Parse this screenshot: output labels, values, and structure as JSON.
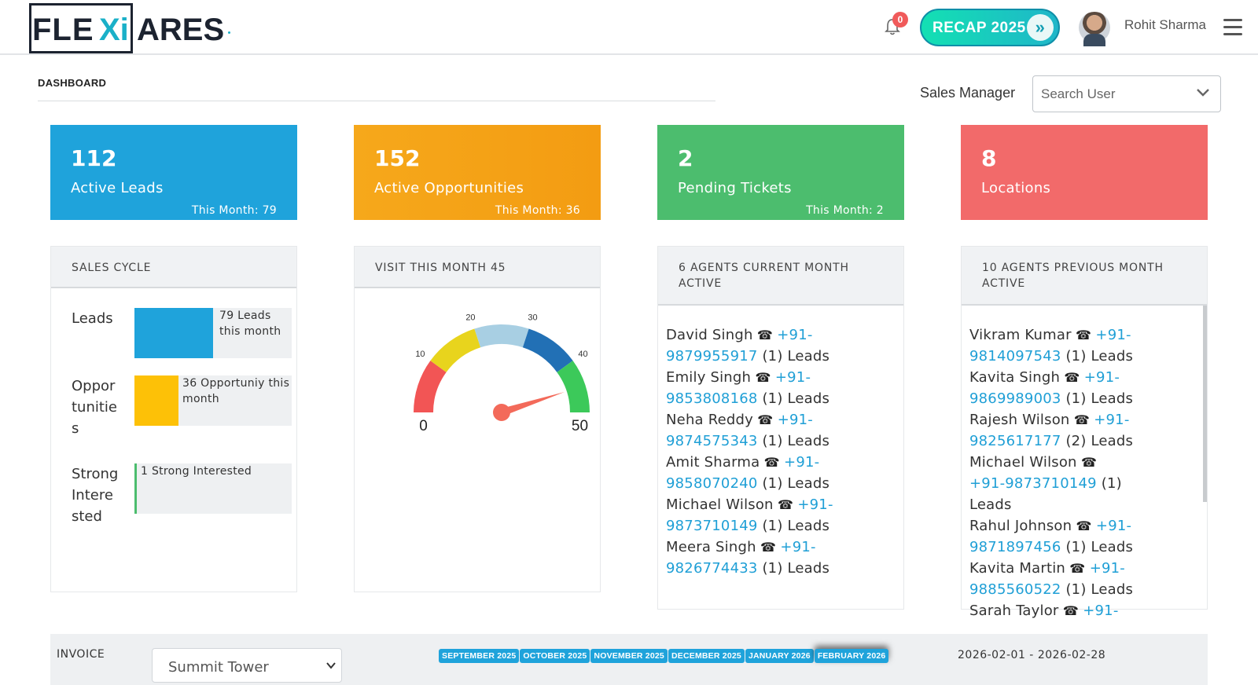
{
  "header": {
    "logo_text": "FLEXIARES",
    "notification_count": "0",
    "recap_label": "RECAP 2025",
    "user_name": "Rohit Sharma"
  },
  "page": {
    "title": "DASHBOARD",
    "filter_label": "Sales Manager",
    "search_placeholder": "Search User"
  },
  "stats": [
    {
      "value": "112",
      "label": "Active Leads",
      "sub": "This Month: 79",
      "color": "#1fa3db"
    },
    {
      "value": "152",
      "label": "Active Opportunities",
      "sub": "This Month: 36",
      "color": "#f39c12"
    },
    {
      "value": "2",
      "label": "Pending Tickets",
      "sub": "This Month: 2",
      "color": "#4cbd6e"
    },
    {
      "value": "8",
      "label": "Locations",
      "sub": "",
      "color": "#f26a6a"
    }
  ],
  "sales_cycle": {
    "title": "SALES CYCLE",
    "rows": [
      {
        "name": "Leads",
        "text": "79 Leads this month",
        "fill": 0.5,
        "color": "#1fa3db"
      },
      {
        "name": "Opportunities",
        "text": "36 Opportuniy this month",
        "fill": 0.28,
        "color": "#fdc107"
      },
      {
        "name": "Strong Interested",
        "text": "1 Strong Interested",
        "fill": 0.01,
        "color": "#4cbd6e"
      }
    ]
  },
  "visit": {
    "title": "VISIT THIS MONTH 45",
    "gauge": {
      "min": "0",
      "max": "50",
      "value": 45,
      "ticks": [
        "10",
        "20",
        "30",
        "40"
      ],
      "band_colors": [
        "#f25555",
        "#e8d41d",
        "#a8cfe3",
        "#2270b5",
        "#3cc95a"
      ],
      "needle_color": "#f36a5a"
    }
  },
  "current_agents": {
    "title": "6 AGENTS CURRENT MONTH ACTIVE",
    "items": [
      {
        "name": "David Singh",
        "phone": "+91-9879955917",
        "leads": "(1) Leads"
      },
      {
        "name": "Emily Singh",
        "phone": "+91-9853808168",
        "leads": "(1) Leads"
      },
      {
        "name": "Neha Reddy",
        "phone": "+91-9874575343",
        "leads": "(1) Leads"
      },
      {
        "name": "Amit Sharma",
        "phone": "+91-9858070240",
        "leads": "(1) Leads"
      },
      {
        "name": "Michael Wilson",
        "phone": "+91-9873710149",
        "leads": "(1) Leads"
      },
      {
        "name": "Meera Singh",
        "phone": "+91-9826774433",
        "leads": "(1) Leads"
      }
    ]
  },
  "previous_agents": {
    "title": "10 AGENTS PREVIOUS MONTH ACTIVE",
    "items": [
      {
        "name": "Vikram Kumar",
        "phone": "+91-9814097543",
        "leads": "(1) Leads"
      },
      {
        "name": "Kavita Singh",
        "phone": "+91-9869989003",
        "leads": "(1) Leads"
      },
      {
        "name": "Rajesh Wilson",
        "phone": "+91-9825617177",
        "leads": "(2) Leads"
      },
      {
        "name": "Michael Wilson",
        "phone": "+91-9873710149",
        "leads": "(1) Leads"
      },
      {
        "name": "Rahul Johnson",
        "phone": "+91-9871897456",
        "leads": "(1) Leads"
      },
      {
        "name": "Kavita Martin",
        "phone": "+91-9885560522",
        "leads": "(1) Leads"
      },
      {
        "name": "Sarah Taylor",
        "phone": "+91-",
        "leads": ""
      }
    ]
  },
  "invoice": {
    "label": "INVOICE",
    "location": "Summit Tower",
    "months": [
      "SEPTEMBER 2025",
      "OCTOBER 2025",
      "NOVEMBER 2025",
      "DECEMBER 2025",
      "JANUARY 2026",
      "FEBRUARY 2026"
    ],
    "active_month": "FEBRUARY 2026",
    "date_range": "2026-02-01 - 2026-02-28"
  }
}
